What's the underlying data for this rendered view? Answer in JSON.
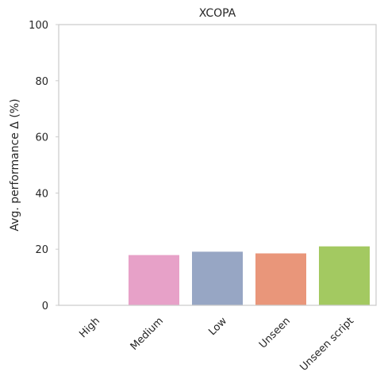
{
  "chart_data": {
    "type": "bar",
    "title": "XCOPA",
    "xlabel": "",
    "ylabel": "Avg. performance Δ (%)",
    "categories": [
      "High",
      "Medium",
      "Low",
      "Unseen",
      "Unseen script"
    ],
    "values": [
      0,
      17.9,
      19.1,
      18.5,
      21.0
    ],
    "colors": [
      "#66c2a5",
      "#e7a1c8",
      "#97a6c4",
      "#e9967a",
      "#a3c961"
    ],
    "ylim": [
      0,
      100
    ],
    "yticks": [
      "0",
      "20",
      "40",
      "60",
      "80",
      "100"
    ],
    "grid": false
  }
}
